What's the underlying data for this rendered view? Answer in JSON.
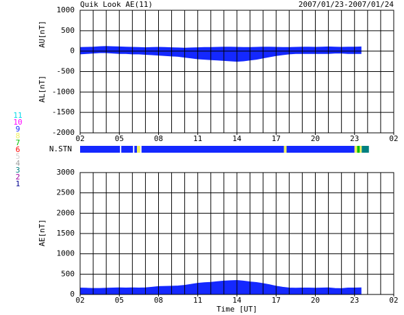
{
  "chart_data": [
    {
      "type": "area",
      "title": "Quik Look AE(11)",
      "subtitle": "2007/01/23-2007/01/24",
      "x": [
        2,
        2.5,
        3,
        3.5,
        4,
        4.5,
        5,
        5.5,
        6,
        6.5,
        7,
        7.5,
        8,
        8.5,
        9,
        9.5,
        10,
        10.5,
        11,
        11.5,
        12,
        12.5,
        13,
        13.5,
        14,
        14.5,
        15,
        15.5,
        16,
        16.5,
        17,
        17.5,
        18,
        18.5,
        19,
        19.5,
        20,
        20.5,
        21,
        21.5,
        22,
        22.5,
        23,
        23.5
      ],
      "series": [
        {
          "name": "AU[nT]",
          "color": "#1428ff",
          "values": [
            90,
            95,
            100,
            110,
            115,
            110,
            105,
            100,
            95,
            90,
            85,
            90,
            95,
            90,
            85,
            80,
            75,
            80,
            85,
            90,
            90,
            95,
            100,
            100,
            95,
            90,
            90,
            95,
            100,
            100,
            95,
            90,
            90,
            95,
            100,
            100,
            95,
            100,
            105,
            100,
            95,
            100,
            100,
            105
          ]
        },
        {
          "name": "AL[nT]",
          "color": "#1428ff",
          "values": [
            -70,
            -60,
            -50,
            -40,
            -40,
            -50,
            -60,
            -60,
            -70,
            -70,
            -80,
            -90,
            -100,
            -110,
            -120,
            -130,
            -150,
            -170,
            -190,
            -200,
            -210,
            -220,
            -230,
            -240,
            -250,
            -240,
            -220,
            -200,
            -170,
            -140,
            -110,
            -90,
            -70,
            -60,
            -60,
            -60,
            -60,
            -60,
            -60,
            -50,
            -50,
            -60,
            -60,
            -60
          ]
        }
      ],
      "xlim": [
        2,
        26
      ],
      "xticks": [
        {
          "value": 2,
          "label": "02"
        },
        {
          "value": 5,
          "label": "05"
        },
        {
          "value": 8,
          "label": "08"
        },
        {
          "value": 11,
          "label": "11"
        },
        14,
        17,
        20,
        23,
        {
          "value": 26,
          "label": "02"
        }
      ],
      "ylim": [
        -2000,
        1000
      ],
      "yticks": [
        1000,
        500,
        0,
        -500,
        -1000,
        -1500,
        -2000
      ],
      "grid": true
    },
    {
      "type": "area",
      "xlabel": "Time [UT]",
      "x": [
        2,
        2.5,
        3,
        3.5,
        4,
        4.5,
        5,
        5.5,
        6,
        6.5,
        7,
        7.5,
        8,
        8.5,
        9,
        9.5,
        10,
        10.5,
        11,
        11.5,
        12,
        12.5,
        13,
        13.5,
        14,
        14.5,
        15,
        15.5,
        16,
        16.5,
        17,
        17.5,
        18,
        18.5,
        19,
        19.5,
        20,
        20.5,
        21,
        21.5,
        22,
        22.5,
        23,
        23.5
      ],
      "series": [
        {
          "name": "AE[nT]",
          "color": "#1428ff",
          "values": [
            160,
            155,
            150,
            150,
            155,
            160,
            165,
            160,
            165,
            160,
            165,
            180,
            195,
            200,
            205,
            210,
            225,
            250,
            275,
            290,
            300,
            315,
            330,
            340,
            345,
            330,
            310,
            295,
            270,
            240,
            205,
            180,
            160,
            155,
            160,
            160,
            155,
            160,
            165,
            150,
            145,
            160,
            160,
            165
          ]
        }
      ],
      "xlim": [
        2,
        26
      ],
      "xticks": [
        {
          "value": 2,
          "label": "02"
        },
        {
          "value": 5,
          "label": "05"
        },
        {
          "value": 8,
          "label": "08"
        },
        {
          "value": 11,
          "label": "11"
        },
        14,
        17,
        20,
        23,
        {
          "value": 26,
          "label": "02"
        }
      ],
      "ylim": [
        0,
        3000
      ],
      "yticks": [
        3000,
        2500,
        2000,
        1500,
        1000,
        500,
        0
      ],
      "grid": true
    }
  ],
  "stations": {
    "label": "N.STN",
    "legend": [
      {
        "label": "11",
        "color": "#00d8e8"
      },
      {
        "label": "10",
        "color": "#ff00ff"
      },
      {
        "label": "9",
        "color": "#1428ff"
      },
      {
        "label": "8",
        "color": "#f0f060"
      },
      {
        "label": "7",
        "color": "#00c000"
      },
      {
        "label": "6",
        "color": "#ff0000"
      },
      {
        "label": "5",
        "color": "#d0d0d0"
      },
      {
        "label": "4",
        "color": "#a0a0a0"
      },
      {
        "label": "3",
        "color": "#008080"
      },
      {
        "label": "2",
        "color": "#a000a0"
      },
      {
        "label": "1",
        "color": "#000090"
      }
    ],
    "segments": [
      {
        "start": 2,
        "end": 5.05,
        "n": 9
      },
      {
        "start": 5.15,
        "end": 6.05,
        "n": 9
      },
      {
        "start": 6.15,
        "end": 6.35,
        "n": 9
      },
      {
        "start": 6.35,
        "end": 6.6,
        "n": 8
      },
      {
        "start": 6.7,
        "end": 17.6,
        "n": 9
      },
      {
        "start": 17.6,
        "end": 17.8,
        "n": 8
      },
      {
        "start": 17.8,
        "end": 23.0,
        "n": 9
      },
      {
        "start": 23.0,
        "end": 23.2,
        "n": 8
      },
      {
        "start": 23.2,
        "end": 23.4,
        "n": 7
      },
      {
        "start": 23.4,
        "end": 23.55,
        "n": 8
      },
      {
        "start": 23.55,
        "end": 24.1,
        "n": 3
      }
    ]
  }
}
